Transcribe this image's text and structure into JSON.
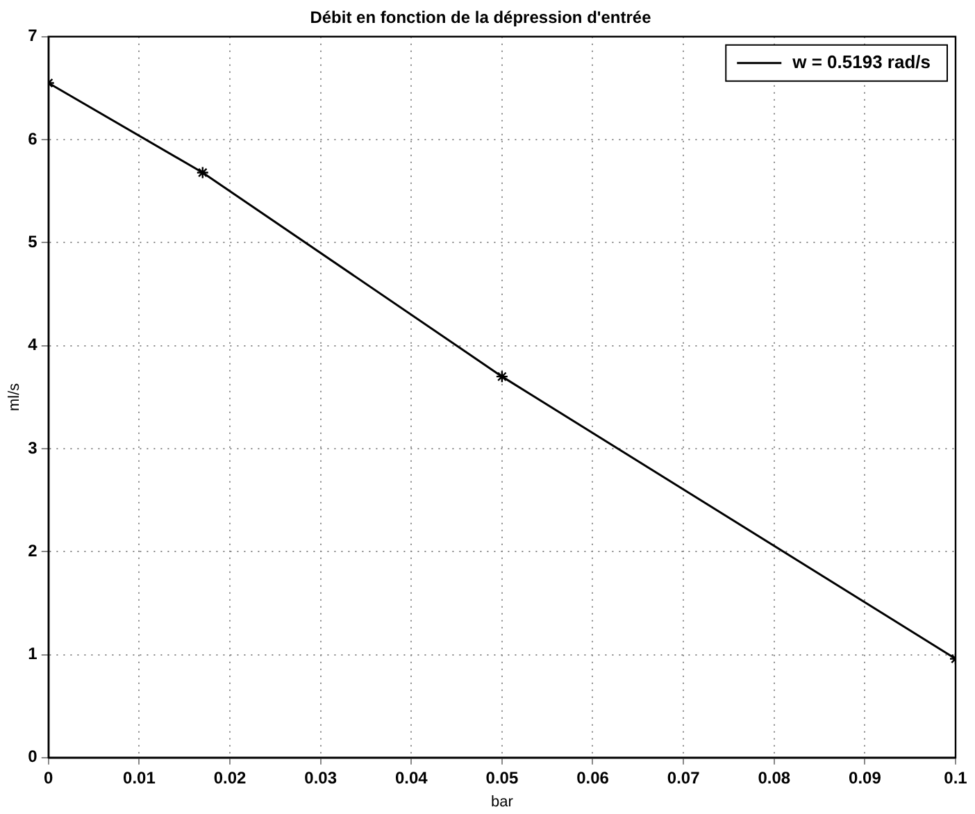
{
  "chart_data": {
    "type": "line",
    "title": "Débit en fonction de la dépression d'entrée",
    "xlabel": "bar",
    "ylabel": "ml/s",
    "x": [
      0,
      0.017,
      0.05,
      0.1
    ],
    "series": [
      {
        "name": "w = 0.5193 rad/s",
        "color": "#000000",
        "values": [
          6.55,
          5.68,
          3.7,
          0.96
        ]
      }
    ],
    "xlim": [
      0,
      0.1
    ],
    "xticks": [
      0,
      0.01,
      0.02,
      0.03,
      0.04,
      0.05,
      0.06,
      0.07,
      0.08,
      0.09,
      0.1
    ],
    "ylim": [
      0,
      7
    ],
    "yticks": [
      0,
      1,
      2,
      3,
      4,
      5,
      6,
      7
    ],
    "grid": true,
    "legend": "top right",
    "marker": "cross",
    "line_style": "solid"
  }
}
